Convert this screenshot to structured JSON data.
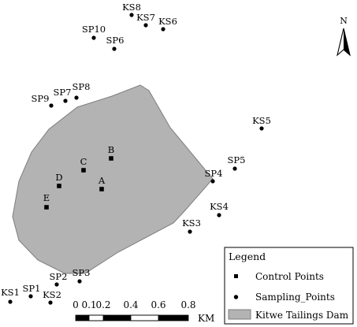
{
  "north_arrow": {
    "label": "N"
  },
  "study_area": {
    "name": "Kitwe Tailings Dam",
    "fill": "#b3b3b3",
    "stroke": "#7d7d7d"
  },
  "control_points": [
    "A",
    "B",
    "C",
    "D",
    "E"
  ],
  "sampling_points": [
    "KS8",
    "KS7",
    "KS6",
    "SP10",
    "SP6",
    "SP8",
    "SP9",
    "SP7",
    "KS5",
    "SP5",
    "SP4",
    "KS4",
    "KS3",
    "SP3",
    "SP2",
    "SP1",
    "KS1",
    "KS2"
  ],
  "legend": {
    "title": "Legend",
    "items": [
      {
        "symbol": "square",
        "label": "Control Points"
      },
      {
        "symbol": "circle",
        "label": "Sampling_Points"
      },
      {
        "symbol": "polygon",
        "label": "Kitwe Tailings Dam"
      }
    ]
  },
  "scale_bar": {
    "tick_labels": [
      "0",
      "0.1",
      "0.2",
      "0.4",
      "0.6",
      "0.8"
    ],
    "unit": "KM"
  }
}
